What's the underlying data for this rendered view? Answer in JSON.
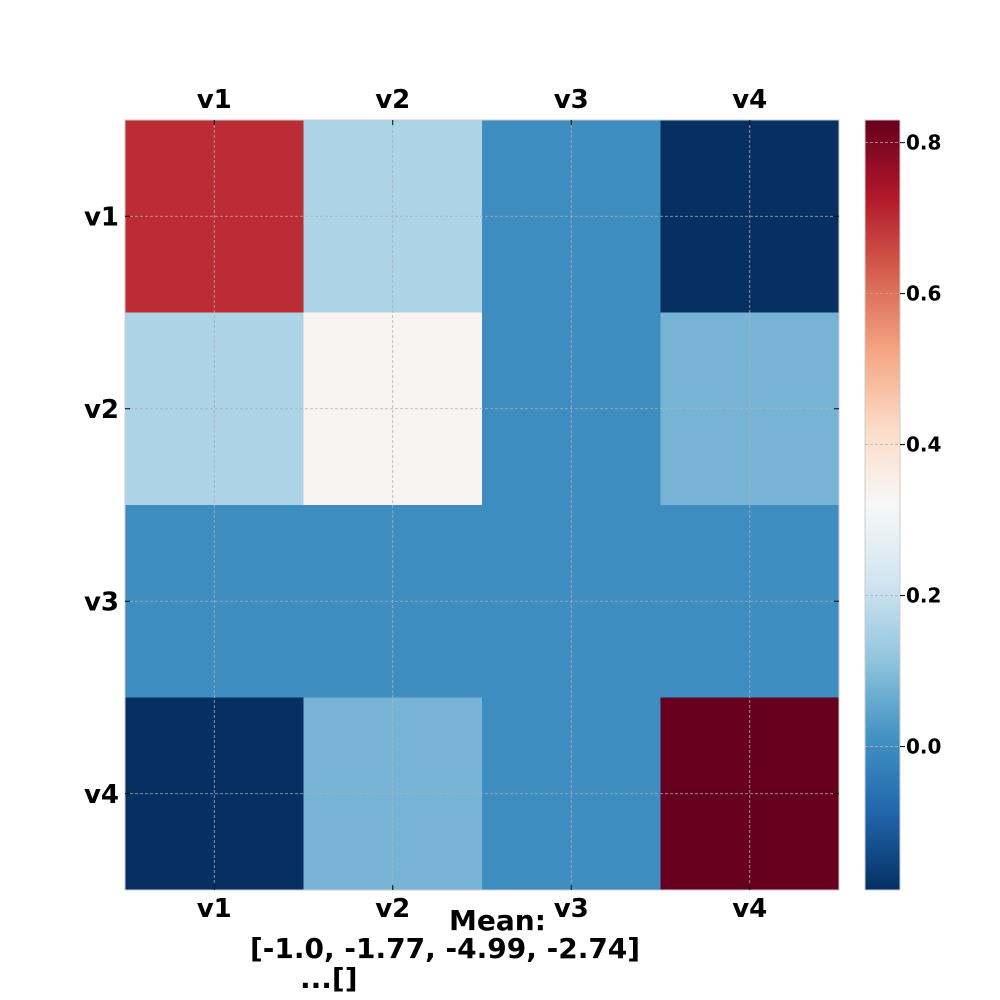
{
  "chart_data": {
    "type": "heatmap",
    "x_categories": [
      "v1",
      "v2",
      "v3",
      "v4"
    ],
    "y_categories": [
      "v1",
      "v2",
      "v3",
      "v4"
    ],
    "values": [
      [
        0.7,
        0.16,
        0.0,
        -0.19
      ],
      [
        0.16,
        0.33,
        0.0,
        0.08
      ],
      [
        0.0,
        0.0,
        0.0,
        0.0
      ],
      [
        -0.19,
        0.08,
        0.0,
        0.83
      ]
    ],
    "colorscale": "RdBu_r",
    "vmin": -0.19,
    "vmax": 0.83,
    "colorbar_ticks": [
      "0.8",
      "0.6",
      "0.4",
      "0.2",
      "0.0"
    ],
    "colorbar_tick_values": [
      0.8,
      0.6,
      0.4,
      0.2,
      0.0
    ],
    "x_ticks_top_and_bottom": true,
    "grid": true,
    "caption": {
      "line1": "Mean:",
      "line2": "[-1.0, -1.77, -4.99, -2.74]",
      "line3": "...[]"
    }
  }
}
